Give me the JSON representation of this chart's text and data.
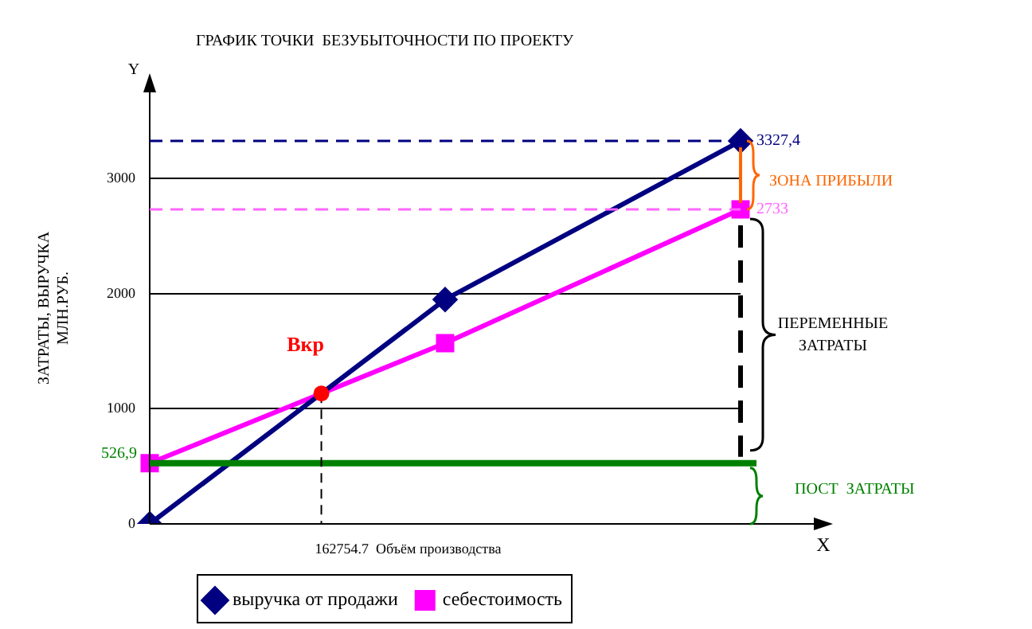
{
  "chart_data": {
    "type": "line",
    "title": "ГРАФИК ТОЧКИ  БЕЗУБЫТОЧНОСТИ ПО ПРОЕКТУ",
    "ylabel": "ЗАТРАТЫ, ВЫРУЧКА\nМЛН.РУБ.",
    "xlabel": "X",
    "categories": [
      null,
      null,
      null
    ],
    "series": [
      {
        "name": "выручка от продажи",
        "color": "#000080",
        "marker": "diamond",
        "values": [
          0,
          1950,
          3327.4
        ]
      },
      {
        "name": "себестоимость",
        "color": "#ff00ff",
        "marker": "square",
        "values": [
          526.9,
          1570,
          2733
        ]
      }
    ],
    "ylim": [
      0,
      3750
    ],
    "yticks": [
      0,
      1000,
      2000,
      3000
    ],
    "tick_labels": "y",
    "grid": "y",
    "legend": "bottom",
    "line_style": "solid",
    "ref_lines": [
      {
        "axis": "y",
        "value": 3327.4,
        "label": "3327,4",
        "color": "#000080",
        "line_style": "dashed"
      },
      {
        "axis": "y",
        "value": 2733,
        "label": "2733",
        "color": "#ff66ff",
        "line_style": "dashed"
      },
      {
        "axis": "y",
        "value": 526.9,
        "label": "526,9",
        "color": "#008000",
        "line_style": "solid"
      }
    ],
    "annotations": [
      "Y",
      "Вкр",
      "162754.7  Объём производства",
      "ЗОНА ПРИБЫЛИ",
      "ПЕРЕМЕННЫЕ\nЗАТРАТЫ",
      "ПОСТ  ЗАТРАТЫ"
    ]
  }
}
